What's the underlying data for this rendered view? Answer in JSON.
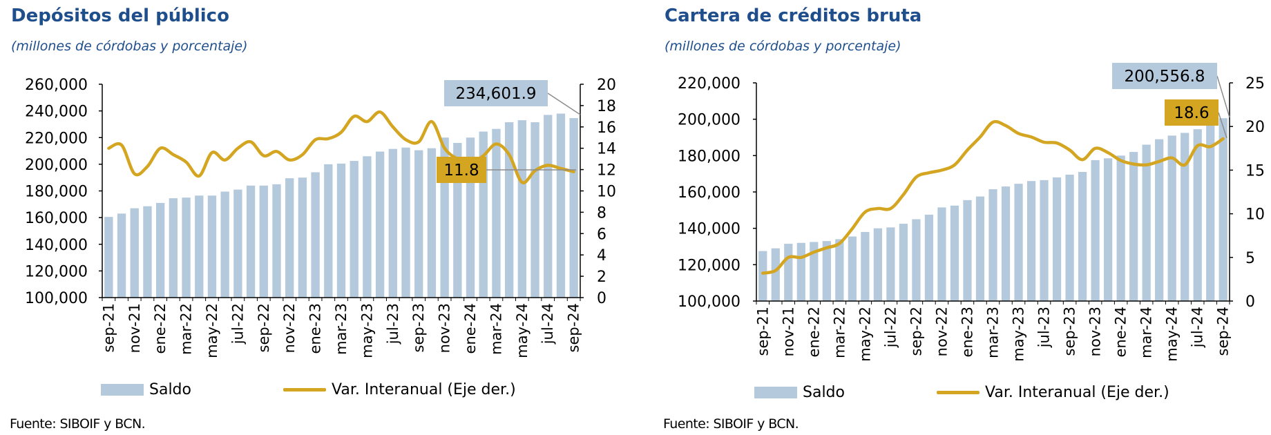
{
  "chart_data": [
    {
      "type": "bar+line",
      "title": "Depósitos del público",
      "subtitle": "(millones de córdobas y porcentaje)",
      "categories": [
        "sep-21",
        "oct-21",
        "nov-21",
        "dic-21",
        "ene-22",
        "feb-22",
        "mar-22",
        "abr-22",
        "may-22",
        "jun-22",
        "jul-22",
        "ago-22",
        "sep-22",
        "oct-22",
        "nov-22",
        "dic-22",
        "ene-23",
        "feb-23",
        "mar-23",
        "abr-23",
        "may-23",
        "jun-23",
        "jul-23",
        "ago-23",
        "sep-23",
        "oct-23",
        "nov-23",
        "dic-23",
        "ene-24",
        "feb-24",
        "mar-24",
        "abr-24",
        "may-24",
        "jun-24",
        "jul-24",
        "ago-24",
        "sep-24"
      ],
      "tick_labels": [
        "sep-21",
        "nov-21",
        "ene-22",
        "mar-22",
        "may-22",
        "jul-22",
        "sep-22",
        "nov-22",
        "ene-23",
        "mar-23",
        "may-23",
        "jul-23",
        "sep-23",
        "nov-23",
        "ene-24",
        "mar-24",
        "may-24",
        "jul-24",
        "sep-24"
      ],
      "series": [
        {
          "name": "Saldo",
          "kind": "bar",
          "axis": "left",
          "color": "#b4c9dc",
          "values": [
            160500,
            163000,
            167000,
            168500,
            171000,
            174500,
            175000,
            176500,
            176500,
            179500,
            181000,
            184000,
            184000,
            185000,
            189500,
            190000,
            194000,
            200000,
            200500,
            202500,
            206000,
            209500,
            211500,
            212500,
            210500,
            212000,
            220000,
            216000,
            220000,
            224500,
            226500,
            231500,
            233000,
            231500,
            237000,
            238000,
            234601.9
          ]
        },
        {
          "name": "Var. Interanual (Eje der.)",
          "kind": "line",
          "axis": "right",
          "color": "#d4a520",
          "values": [
            14.0,
            14.3,
            11.6,
            12.3,
            14.0,
            13.4,
            12.7,
            11.4,
            13.6,
            12.9,
            14.0,
            14.6,
            13.3,
            13.7,
            12.9,
            13.4,
            14.8,
            14.9,
            15.5,
            17.0,
            16.5,
            17.4,
            16.0,
            14.8,
            14.6,
            16.5,
            14.0,
            13.0,
            12.6,
            13.3,
            14.4,
            13.4,
            10.8,
            11.9,
            12.4,
            12.1,
            11.8
          ]
        }
      ],
      "left_axis": {
        "min": 100000,
        "max": 260000,
        "step": 20000,
        "labels": [
          "100,000",
          "120,000",
          "140,000",
          "160,000",
          "180,000",
          "200,000",
          "220,000",
          "240,000",
          "260,000"
        ]
      },
      "right_axis": {
        "min": 0,
        "max": 20,
        "step": 2,
        "labels": [
          "0",
          "2",
          "4",
          "6",
          "8",
          "10",
          "12",
          "14",
          "16",
          "18",
          "20"
        ]
      },
      "annotations": [
        {
          "text": "234,601.9",
          "style": "bar"
        },
        {
          "text": "11.8",
          "style": "line"
        }
      ]
    },
    {
      "type": "bar+line",
      "title": "Cartera de créditos bruta",
      "subtitle": "(millones de córdobas y porcentaje)",
      "categories": [
        "sep-21",
        "oct-21",
        "nov-21",
        "dic-21",
        "ene-22",
        "feb-22",
        "mar-22",
        "abr-22",
        "may-22",
        "jun-22",
        "jul-22",
        "ago-22",
        "sep-22",
        "oct-22",
        "nov-22",
        "dic-22",
        "ene-23",
        "feb-23",
        "mar-23",
        "abr-23",
        "may-23",
        "jun-23",
        "jul-23",
        "ago-23",
        "sep-23",
        "oct-23",
        "nov-23",
        "dic-23",
        "ene-24",
        "feb-24",
        "mar-24",
        "abr-24",
        "may-24",
        "jun-24",
        "jul-24",
        "ago-24",
        "sep-24"
      ],
      "tick_labels": [
        "sep-21",
        "nov-21",
        "ene-22",
        "mar-22",
        "may-22",
        "jul-22",
        "sep-22",
        "nov-22",
        "ene-23",
        "mar-23",
        "may-23",
        "jul-23",
        "sep-23",
        "nov-23",
        "ene-24",
        "mar-24",
        "may-24",
        "jul-24",
        "sep-24"
      ],
      "series": [
        {
          "name": "Saldo",
          "kind": "bar",
          "axis": "left",
          "color": "#b4c9dc",
          "values": [
            127500,
            129000,
            131500,
            132000,
            132500,
            133000,
            134000,
            135500,
            138000,
            140000,
            140500,
            142500,
            145000,
            147500,
            151500,
            152500,
            155500,
            157500,
            161500,
            163000,
            164500,
            166000,
            166500,
            168000,
            169500,
            171000,
            177500,
            178500,
            180000,
            182000,
            186000,
            189000,
            191000,
            192500,
            194500,
            198500,
            200556.8
          ]
        },
        {
          "name": "Var. Interanual (Eje der.)",
          "kind": "line",
          "axis": "right",
          "color": "#d4a520",
          "values": [
            3.2,
            3.5,
            5.0,
            5.0,
            5.6,
            6.1,
            6.6,
            8.3,
            10.2,
            10.6,
            10.6,
            12.2,
            14.2,
            14.7,
            15.0,
            15.6,
            17.3,
            18.8,
            20.5,
            20.1,
            19.2,
            18.8,
            18.2,
            18.1,
            17.3,
            16.2,
            17.5,
            17.0,
            16.1,
            15.7,
            15.6,
            16.0,
            16.4,
            15.6,
            17.8,
            17.7,
            18.6
          ]
        }
      ],
      "left_axis": {
        "min": 100000,
        "max": 220000,
        "step": 20000,
        "labels": [
          "100,000",
          "120,000",
          "140,000",
          "160,000",
          "180,000",
          "200,000",
          "220,000"
        ]
      },
      "right_axis": {
        "min": 0,
        "max": 25,
        "step": 5,
        "labels": [
          "0",
          "5",
          "10",
          "15",
          "20",
          "25"
        ]
      },
      "annotations": [
        {
          "text": "200,556.8",
          "style": "bar"
        },
        {
          "text": "18.6",
          "style": "line"
        }
      ]
    }
  ],
  "legend": {
    "bar_label": "Saldo",
    "line_label": "Var. Interanual (Eje der.)"
  },
  "source": "Fuente:  SIBOIF y BCN."
}
